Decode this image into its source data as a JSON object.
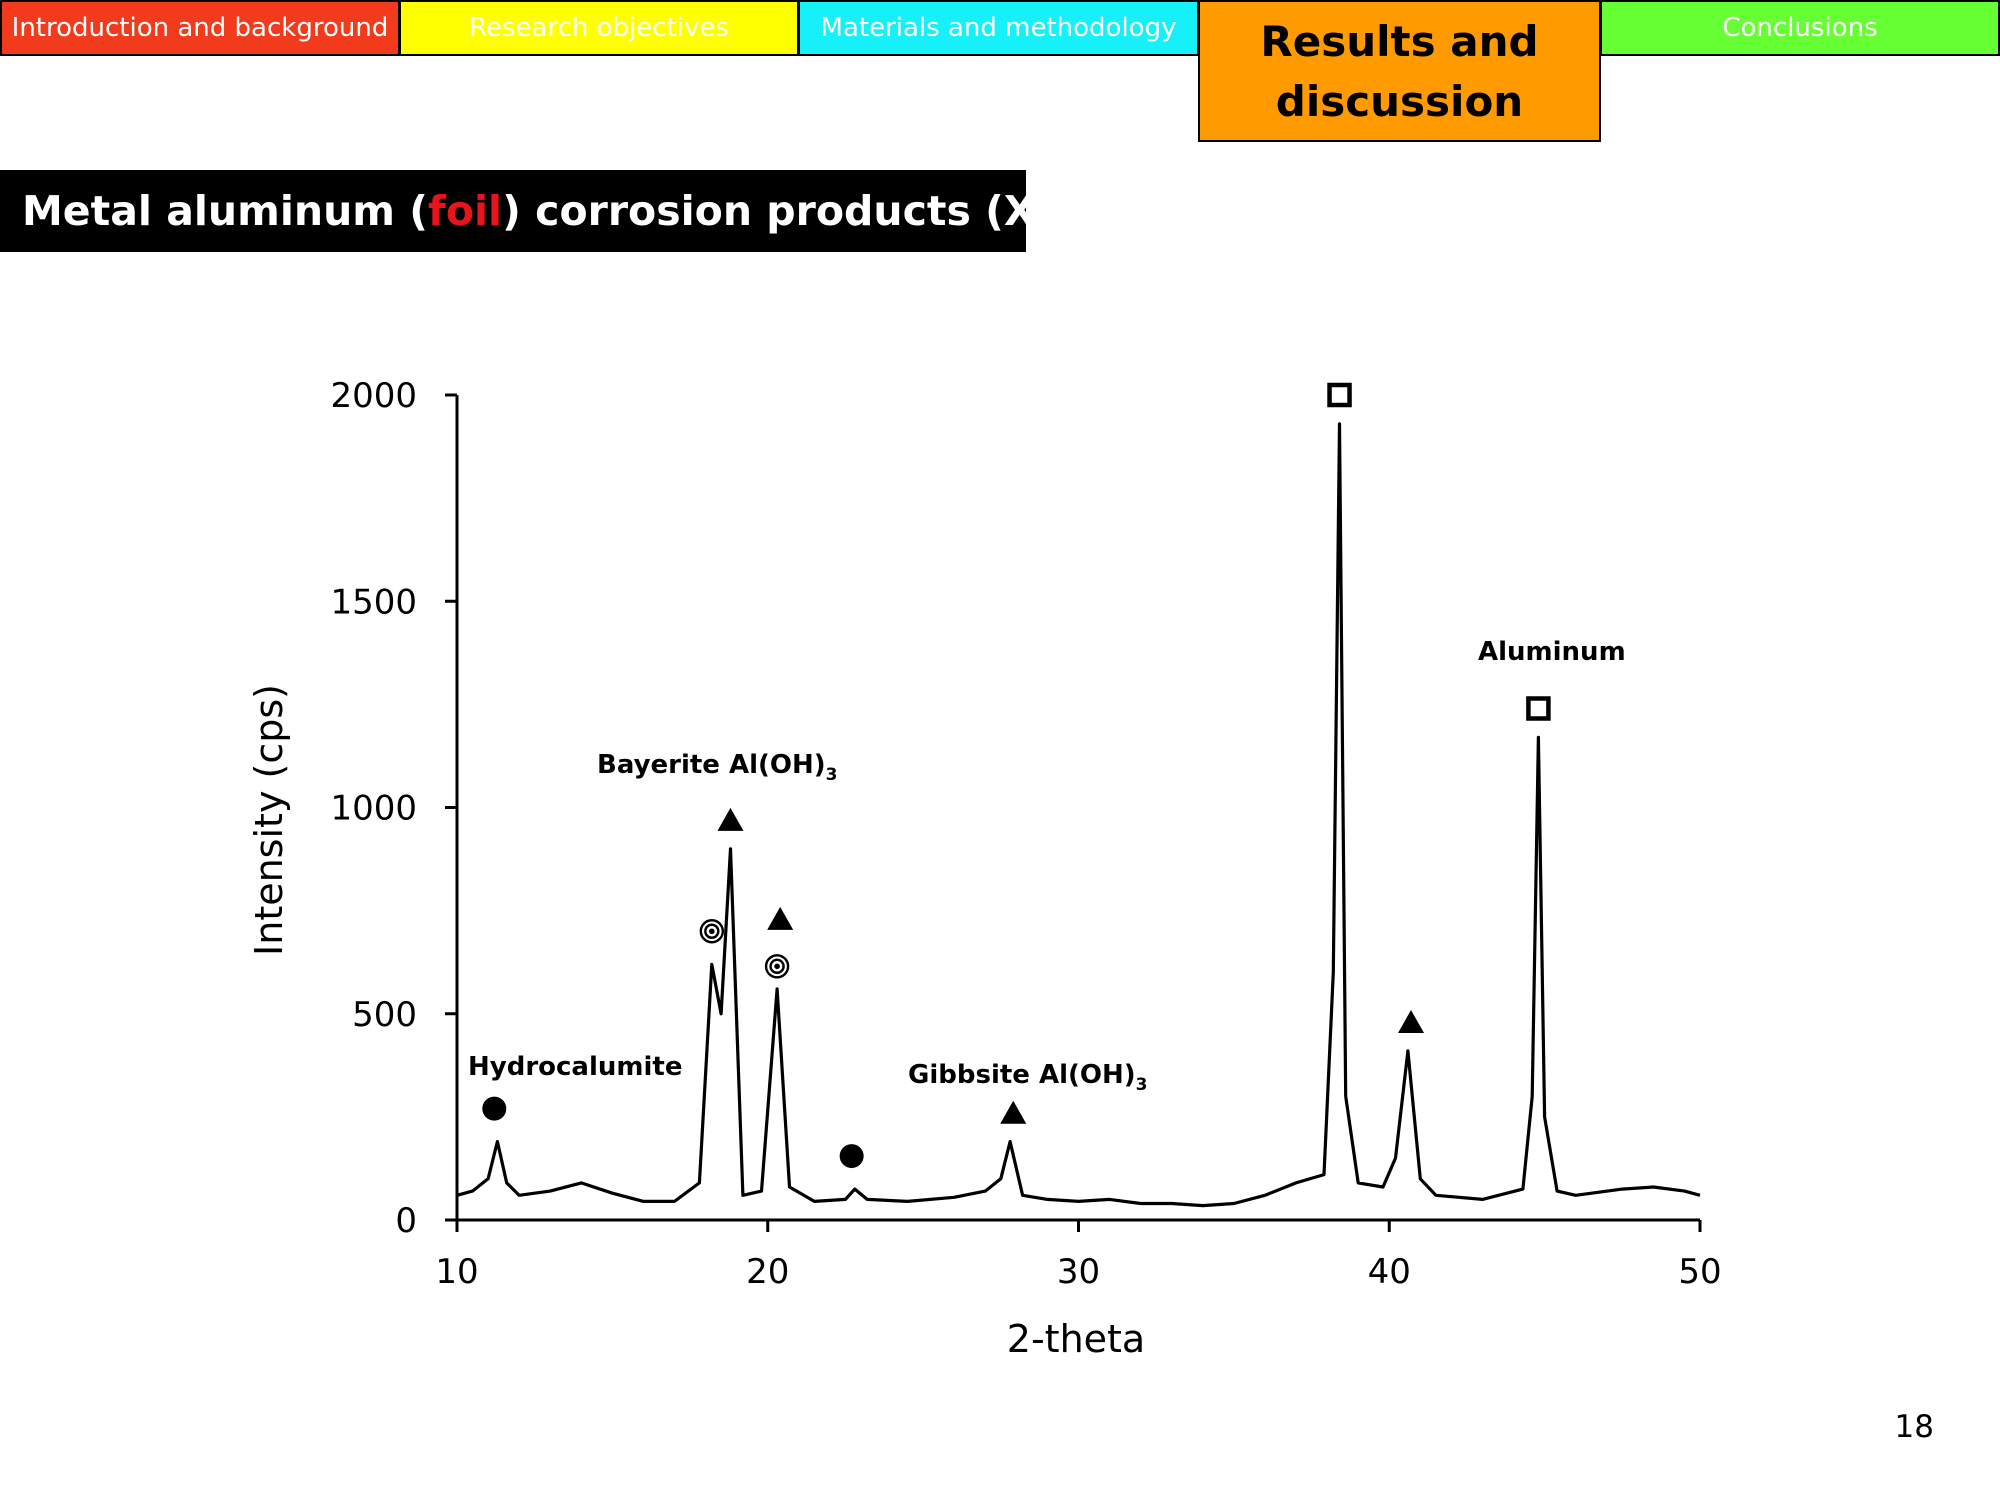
{
  "nav": {
    "tabs": [
      {
        "label": "Introduction and background",
        "bg": "#f23a1c",
        "color": "#ffffff"
      },
      {
        "label": "Research objectives",
        "bg": "#ffff00",
        "color": "#ffffff"
      },
      {
        "label": "Materials and methodology",
        "bg": "#16f0f8",
        "color": "#ffffff"
      },
      {
        "label": "Results and discussion",
        "bg": "#ff9b00",
        "color": "#000000",
        "active": true
      },
      {
        "label": "Conclusions",
        "bg": "#66ff33",
        "color": "#ffffff"
      }
    ]
  },
  "slide": {
    "title_pre": "Metal aluminum (",
    "title_highlight": "foil",
    "title_post": ") corrosion products (XRD)",
    "highlight_color": "#e8141b",
    "page_number": "18"
  },
  "chart_data": {
    "type": "line",
    "xlabel": "2-theta",
    "ylabel": "Intensity (cps)",
    "xlim": [
      10,
      50
    ],
    "ylim": [
      0,
      2000
    ],
    "xticks": [
      "10",
      "20",
      "30",
      "40",
      "50"
    ],
    "yticks": [
      "0",
      "500",
      "1000",
      "1500",
      "2000"
    ],
    "grid": false,
    "series": [
      {
        "x": [
          10.0,
          10.5,
          11.0,
          11.3,
          11.6,
          12.0,
          13.0,
          14.0,
          15.0,
          16.0,
          17.0,
          17.8,
          18.2,
          18.5,
          18.8,
          19.2,
          19.8,
          20.3,
          20.7,
          21.5,
          22.5,
          22.8,
          23.2,
          24.5,
          26.0,
          27.0,
          27.5,
          27.8,
          28.2,
          29.0,
          30.0,
          31.0,
          32.0,
          33.0,
          34.0,
          35.0,
          36.0,
          37.0,
          37.9,
          38.2,
          38.4,
          38.6,
          39.0,
          39.8,
          40.2,
          40.6,
          41.0,
          41.5,
          43.0,
          44.3,
          44.6,
          44.8,
          45.0,
          45.4,
          46.0,
          47.5,
          48.5,
          49.5,
          50.0
        ],
        "y": [
          60,
          70,
          100,
          190,
          90,
          60,
          70,
          90,
          65,
          45,
          45,
          90,
          620,
          500,
          900,
          60,
          70,
          560,
          80,
          45,
          50,
          75,
          50,
          45,
          55,
          70,
          100,
          190,
          60,
          50,
          45,
          50,
          40,
          40,
          35,
          40,
          60,
          90,
          110,
          600,
          1930,
          300,
          90,
          80,
          150,
          410,
          100,
          60,
          50,
          75,
          300,
          1170,
          250,
          70,
          60,
          75,
          80,
          70,
          60
        ]
      }
    ],
    "annotations": [
      {
        "text": "Hydrocalumite"
      },
      {
        "text_main": "Bayerite Al(OH)",
        "text_sub": "3"
      },
      {
        "text_main": "Gibbsite Al(OH)",
        "text_sub": "3"
      },
      {
        "text": "Aluminum"
      }
    ],
    "markers": [
      {
        "shape": "circle",
        "x": 11.2,
        "y": 270
      },
      {
        "shape": "circle",
        "x": 22.7,
        "y": 155
      },
      {
        "shape": "target",
        "x": 18.2,
        "y": 700
      },
      {
        "shape": "target",
        "x": 20.3,
        "y": 615
      },
      {
        "shape": "triangle",
        "x": 18.8,
        "y": 970
      },
      {
        "shape": "triangle",
        "x": 20.4,
        "y": 730
      },
      {
        "shape": "triangle",
        "x": 27.9,
        "y": 260
      },
      {
        "shape": "triangle",
        "x": 40.7,
        "y": 480
      },
      {
        "shape": "square",
        "x": 38.4,
        "y": 2000
      },
      {
        "shape": "square",
        "x": 44.8,
        "y": 1240
      }
    ]
  }
}
